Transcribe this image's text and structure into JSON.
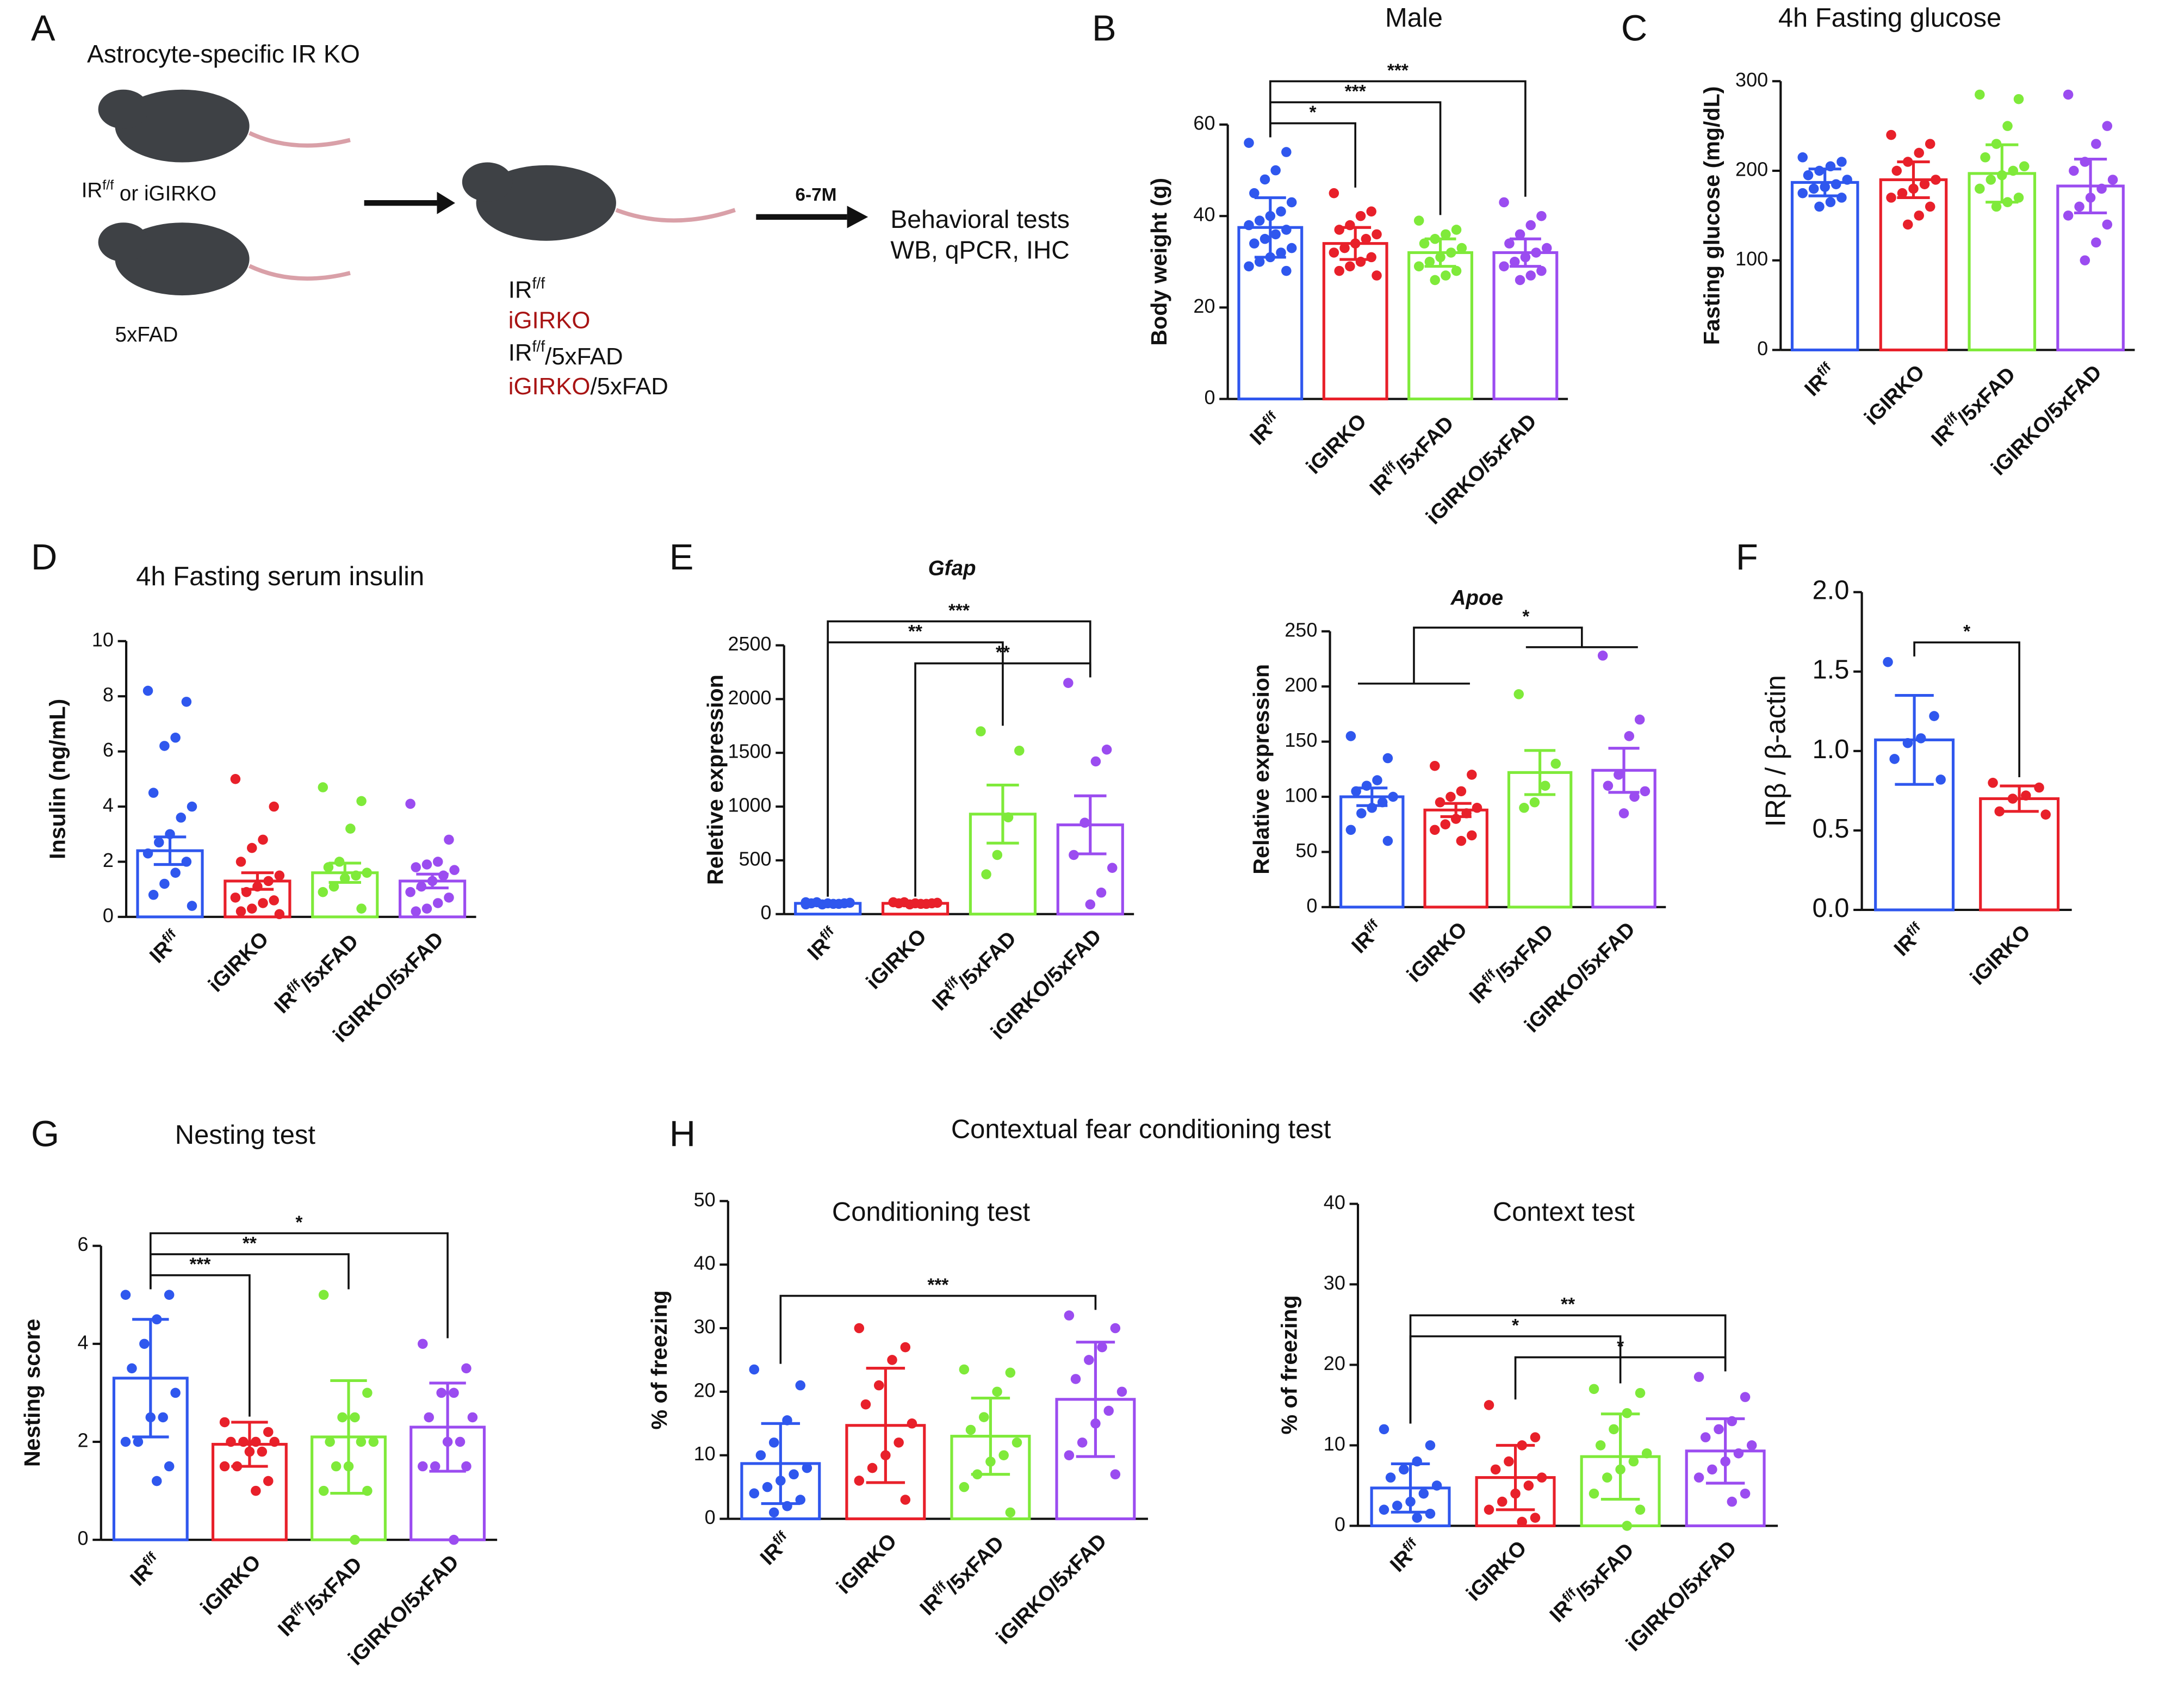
{
  "diagram": {
    "heading": "Astrocyte-specific IR KO",
    "parents": "IRf/f or iGIRKO",
    "parent2": "5xFAD",
    "duration": "6-7M",
    "tests": [
      "Behavioral tests",
      "WB, qPCR, IHC"
    ],
    "groups": [
      "IRf/f",
      "iGIRKO",
      "IRf/f/5xFAD"
    ],
    "group4": [
      "iGIRKO",
      "/5xFAD"
    ]
  },
  "panels": {
    "letters": [
      "A",
      "B",
      "C",
      "D",
      "E",
      "F",
      "G",
      "H"
    ],
    "h_title": "Contextual fear conditioning test"
  },
  "chart_data": [
    {
      "type": "bar",
      "title": "Male",
      "ylabel": "Body weight (g)",
      "categories": [
        "IRf/f",
        "iGIRKO",
        "IRf/f/5xFAD",
        "iGIRKO/5xFAD"
      ],
      "colors": [
        "#2f57ee",
        "#e8202a",
        "#7fea3a",
        "#9b4cf0"
      ],
      "values": [
        37.5,
        34,
        32,
        32
      ],
      "errors": [
        6.5,
        3.5,
        3,
        3
      ],
      "points": [
        [
          56,
          54,
          50,
          48,
          45,
          43,
          41,
          40,
          39,
          38,
          37,
          36,
          35,
          34,
          33,
          32,
          31,
          30,
          29,
          28
        ],
        [
          45,
          41,
          40,
          38,
          37,
          36,
          35,
          34,
          33,
          32,
          31,
          30,
          29,
          28,
          27
        ],
        [
          39,
          37,
          36,
          35,
          34,
          33,
          32,
          31,
          30,
          29,
          28,
          27,
          26
        ],
        [
          43,
          40,
          38,
          36,
          34,
          33,
          32,
          31,
          30,
          29,
          28,
          27,
          26
        ]
      ],
      "ylim": [
        0,
        60
      ],
      "yticks": [
        0,
        20,
        40,
        60
      ],
      "brackets": [
        {
          "groups": [
            0,
            1
          ],
          "label": "*"
        },
        {
          "groups": [
            0,
            2
          ],
          "label": "***"
        },
        {
          "groups": [
            0,
            3
          ],
          "label": "***"
        }
      ]
    },
    {
      "type": "bar",
      "title": "4h Fasting glucose",
      "ylabel": "Fasting glucose (mg/dL)",
      "categories": [
        "IRf/f",
        "iGIRKO",
        "IRf/f/5xFAD",
        "iGIRKO/5xFAD"
      ],
      "colors": [
        "#2f57ee",
        "#e8202a",
        "#7fea3a",
        "#9b4cf0"
      ],
      "values": [
        187,
        190,
        197,
        183
      ],
      "errors": [
        15,
        20,
        32,
        30
      ],
      "points": [
        [
          215,
          210,
          205,
          200,
          195,
          190,
          185,
          182,
          180,
          175,
          170,
          165,
          160
        ],
        [
          240,
          230,
          220,
          210,
          200,
          190,
          185,
          180,
          175,
          170,
          160,
          150,
          140
        ],
        [
          285,
          280,
          250,
          230,
          215,
          205,
          200,
          195,
          190,
          180,
          170,
          165,
          160
        ],
        [
          285,
          250,
          230,
          210,
          200,
          190,
          180,
          170,
          160,
          150,
          140,
          120,
          100
        ]
      ],
      "ylim": [
        0,
        300
      ],
      "yticks": [
        0,
        100,
        200,
        300
      ],
      "brackets": []
    },
    {
      "type": "bar",
      "title": "4h Fasting serum insulin",
      "ylabel": "Insulin (ng/mL)",
      "categories": [
        "IRf/f",
        "iGIRKO",
        "IRf/f/5xFAD",
        "iGIRKO/5xFAD"
      ],
      "colors": [
        "#2f57ee",
        "#e8202a",
        "#7fea3a",
        "#9b4cf0"
      ],
      "values": [
        2.4,
        1.3,
        1.6,
        1.3
      ],
      "errors": [
        0.5,
        0.3,
        0.35,
        0.25
      ],
      "points": [
        [
          8.2,
          7.8,
          6.5,
          6.2,
          4.5,
          4,
          3.6,
          3,
          2.7,
          2.3,
          2,
          1.6,
          1.2,
          0.8,
          0.4
        ],
        [
          5,
          4,
          2.8,
          2.5,
          2,
          1.5,
          1.3,
          1.1,
          0.9,
          0.7,
          0.6,
          0.5,
          0.3,
          0.2,
          0.1
        ],
        [
          4.7,
          4.2,
          3.2,
          2,
          1.8,
          1.6,
          1.5,
          1.4,
          1.1,
          0.9,
          0.3
        ],
        [
          4.1,
          2.8,
          2,
          1.9,
          1.8,
          1.7,
          1.5,
          1.3,
          1.1,
          0.9,
          0.7,
          0.5,
          0.3,
          0.2
        ]
      ],
      "ylim": [
        0,
        10
      ],
      "yticks": [
        0,
        2,
        4,
        6,
        8,
        10
      ],
      "brackets": []
    },
    {
      "type": "bar",
      "title": "Gfap",
      "ylabel": "Reletive expression",
      "categories": [
        "IRf/f",
        "iGIRKO",
        "IRf/f/5xFAD",
        "iGIRKO/5xFAD"
      ],
      "colors": [
        "#2f57ee",
        "#e8202a",
        "#7fea3a",
        "#9b4cf0"
      ],
      "values": [
        100,
        100,
        930,
        830
      ],
      "errors": [
        10,
        10,
        270,
        270
      ],
      "points": [
        [
          110,
          100,
          95,
          90,
          100,
          105,
          95,
          100,
          110,
          90
        ],
        [
          110,
          100,
          95,
          90,
          100,
          105,
          95,
          100,
          110
        ],
        [
          1700,
          1520,
          900,
          550,
          370
        ],
        [
          2150,
          1530,
          1420,
          850,
          550,
          430,
          200,
          90
        ]
      ],
      "ylim": [
        0,
        2500
      ],
      "yticks": [
        0,
        500,
        1000,
        1500,
        2000,
        2500
      ],
      "brackets": [
        {
          "groups": [
            1,
            3
          ],
          "label": "**"
        },
        {
          "groups": [
            0,
            2
          ],
          "label": "**"
        },
        {
          "groups": [
            0,
            3
          ],
          "label": "***"
        }
      ]
    },
    {
      "type": "bar",
      "title": "Apoe",
      "ylabel": "Relative expression",
      "categories": [
        "IRf/f",
        "iGIRKO",
        "IRf/f/5xFAD",
        "iGIRKO/5xFAD"
      ],
      "colors": [
        "#2f57ee",
        "#e8202a",
        "#7fea3a",
        "#9b4cf0"
      ],
      "values": [
        100,
        88,
        122,
        124
      ],
      "errors": [
        8,
        6,
        20,
        20
      ],
      "points": [
        [
          155,
          135,
          115,
          110,
          105,
          100,
          95,
          90,
          85,
          70,
          60
        ],
        [
          128,
          120,
          105,
          100,
          95,
          90,
          85,
          80,
          75,
          70,
          65,
          60
        ],
        [
          193,
          130,
          110,
          95,
          90
        ],
        [
          228,
          170,
          155,
          120,
          110,
          105,
          100,
          85
        ]
      ],
      "ylim": [
        0,
        250
      ],
      "yticks": [
        0,
        50,
        100,
        150,
        200,
        250
      ],
      "brackets": [
        {
          "left": [
            0,
            1
          ],
          "right": [
            2,
            3
          ],
          "label": "*"
        }
      ]
    },
    {
      "type": "bar",
      "ylabel": "IRβ / β-actin",
      "categories": [
        "IRf/f",
        "iGIRKO"
      ],
      "colors": [
        "#2f57ee",
        "#e8202a"
      ],
      "values": [
        1.07,
        0.7
      ],
      "errors": [
        0.28,
        0.08
      ],
      "points": [
        [
          1.56,
          1.22,
          1.08,
          1.05,
          0.95,
          0.82
        ],
        [
          0.8,
          0.77,
          0.72,
          0.7,
          0.62,
          0.6
        ]
      ],
      "ylim": [
        0,
        2
      ],
      "yticks": [
        {
          "value": 0,
          "label": "0.0"
        },
        0.5,
        {
          "value": 1,
          "label": "1.0"
        },
        1.5,
        {
          "value": 2,
          "label": "2.0"
        }
      ],
      "brackets": [
        {
          "groups": [
            0,
            1
          ],
          "label": "*"
        }
      ]
    },
    {
      "type": "bar",
      "title": "Nesting test",
      "ylabel": "Nesting score",
      "categories": [
        "IRf/f",
        "iGIRKO",
        "IRf/f/5xFAD",
        "iGIRKO/5xFAD"
      ],
      "colors": [
        "#2f57ee",
        "#e8202a",
        "#7fea3a",
        "#9b4cf0"
      ],
      "values": [
        3.3,
        1.95,
        2.1,
        2.3
      ],
      "errors": [
        1.2,
        0.45,
        1.15,
        0.9
      ],
      "points": [
        [
          5,
          5,
          4.5,
          4,
          3.5,
          3,
          2.5,
          2.5,
          2,
          2,
          1.5,
          1.2
        ],
        [
          2.4,
          2.2,
          2,
          2,
          2,
          2,
          1.8,
          1.8,
          1.5,
          1.5,
          1.2,
          1
        ],
        [
          5,
          3,
          2.5,
          2.5,
          2,
          2,
          2,
          1.5,
          1.5,
          1,
          1,
          0
        ],
        [
          4,
          3.5,
          3,
          3,
          2.5,
          2.5,
          2,
          2,
          1.5,
          1.5,
          1.5,
          0
        ]
      ],
      "ylim": [
        0,
        6
      ],
      "yticks": [
        0,
        2,
        4,
        6
      ],
      "brackets": [
        {
          "groups": [
            0,
            1
          ],
          "label": "***"
        },
        {
          "groups": [
            0,
            2
          ],
          "label": "**"
        },
        {
          "groups": [
            0,
            3
          ],
          "label": "*"
        }
      ]
    },
    {
      "type": "bar",
      "title": "Conditioning test",
      "ylabel": "% of freezing",
      "categories": [
        "IRf/f",
        "iGIRKO",
        "IRf/f/5xFAD",
        "iGIRKO/5xFAD"
      ],
      "colors": [
        "#2f57ee",
        "#e8202a",
        "#7fea3a",
        "#9b4cf0"
      ],
      "values": [
        8.7,
        14.7,
        13,
        18.8
      ],
      "errors": [
        6.3,
        9,
        6,
        9
      ],
      "points": [
        [
          23.5,
          21,
          15.5,
          12,
          10,
          8,
          7,
          6,
          5,
          4,
          3,
          2,
          1
        ],
        [
          30,
          27,
          25,
          21,
          18,
          15,
          12,
          10,
          8,
          6,
          3
        ],
        [
          23.5,
          23,
          20,
          16,
          14,
          12,
          10,
          9,
          7,
          5,
          1
        ],
        [
          32,
          30,
          27,
          25,
          22,
          20,
          17,
          15,
          12,
          10,
          7
        ]
      ],
      "ylim": [
        0,
        50
      ],
      "yticks": [
        0,
        10,
        20,
        30,
        40,
        50
      ],
      "brackets": [
        {
          "groups": [
            0,
            3
          ],
          "label": "***"
        }
      ]
    },
    {
      "type": "bar",
      "title": "Context test",
      "ylabel": "% of freezing",
      "categories": [
        "IRf/f",
        "iGIRKO",
        "IRf/f/5xFAD",
        "iGIRKO/5xFAD"
      ],
      "colors": [
        "#2f57ee",
        "#e8202a",
        "#7fea3a",
        "#9b4cf0"
      ],
      "values": [
        4.7,
        6,
        8.6,
        9.3
      ],
      "errors": [
        3,
        4,
        5.3,
        4
      ],
      "points": [
        [
          12,
          10,
          8,
          7,
          6,
          5,
          4,
          3,
          2.5,
          2,
          1.5,
          1
        ],
        [
          15,
          11,
          10,
          8,
          7,
          6,
          5,
          4,
          3,
          2,
          1,
          0.5
        ],
        [
          17,
          16.5,
          14,
          12,
          10,
          9,
          8,
          7,
          6,
          4,
          2,
          0
        ],
        [
          18.5,
          16,
          13,
          12,
          11,
          10,
          9,
          8,
          7,
          6,
          4,
          3
        ]
      ],
      "ylim": [
        0,
        40
      ],
      "yticks": [
        0,
        10,
        20,
        30,
        40
      ],
      "brackets": [
        {
          "groups": [
            1,
            3
          ],
          "label": "*"
        },
        {
          "groups": [
            0,
            2
          ],
          "label": "*"
        },
        {
          "groups": [
            0,
            3
          ],
          "label": "**"
        }
      ]
    }
  ]
}
